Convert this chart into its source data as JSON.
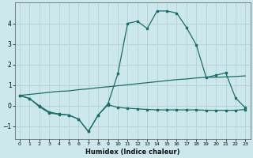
{
  "xlabel": "Humidex (Indice chaleur)",
  "background_color": "#cde8ec",
  "grid_color": "#b8d4d8",
  "line_color": "#1a6e6a",
  "xlim": [
    -0.5,
    23.5
  ],
  "ylim": [
    -1.6,
    5.0
  ],
  "xticks": [
    0,
    1,
    2,
    3,
    4,
    5,
    6,
    7,
    8,
    9,
    10,
    11,
    12,
    13,
    14,
    15,
    16,
    17,
    18,
    19,
    20,
    21,
    22,
    23
  ],
  "yticks": [
    -1,
    0,
    1,
    2,
    3,
    4
  ],
  "line1_x": [
    0,
    1,
    2,
    3,
    4,
    5,
    6,
    7,
    8,
    9,
    10,
    11,
    12,
    13,
    14,
    15,
    16,
    17,
    18,
    19,
    20,
    21,
    22,
    23
  ],
  "line1_y": [
    0.5,
    0.35,
    0.0,
    -0.3,
    -0.4,
    -0.45,
    -0.65,
    -1.25,
    -0.45,
    0.1,
    1.55,
    4.0,
    4.1,
    3.75,
    4.6,
    4.6,
    4.5,
    3.8,
    2.95,
    1.38,
    1.48,
    1.6,
    0.38,
    -0.1
  ],
  "line2_x": [
    0,
    1,
    2,
    3,
    4,
    5,
    6,
    7,
    8,
    9,
    10,
    11,
    12,
    13,
    14,
    15,
    16,
    17,
    18,
    19,
    20,
    21,
    22,
    23
  ],
  "line2_y": [
    0.5,
    0.55,
    0.6,
    0.65,
    0.7,
    0.72,
    0.78,
    0.82,
    0.88,
    0.92,
    0.97,
    1.02,
    1.07,
    1.12,
    1.17,
    1.22,
    1.27,
    1.3,
    1.35,
    1.38,
    1.38,
    1.4,
    1.42,
    1.45
  ],
  "line3_x": [
    0,
    1,
    2,
    3,
    4,
    5,
    6,
    7,
    8,
    9,
    10,
    11,
    12,
    13,
    14,
    15,
    16,
    17,
    18,
    19,
    20,
    21,
    22,
    23
  ],
  "line3_y": [
    0.5,
    0.35,
    -0.05,
    -0.35,
    -0.42,
    -0.45,
    -0.65,
    -1.25,
    -0.45,
    0.05,
    -0.08,
    -0.12,
    -0.15,
    -0.18,
    -0.2,
    -0.2,
    -0.2,
    -0.2,
    -0.2,
    -0.22,
    -0.22,
    -0.22,
    -0.22,
    -0.18
  ]
}
